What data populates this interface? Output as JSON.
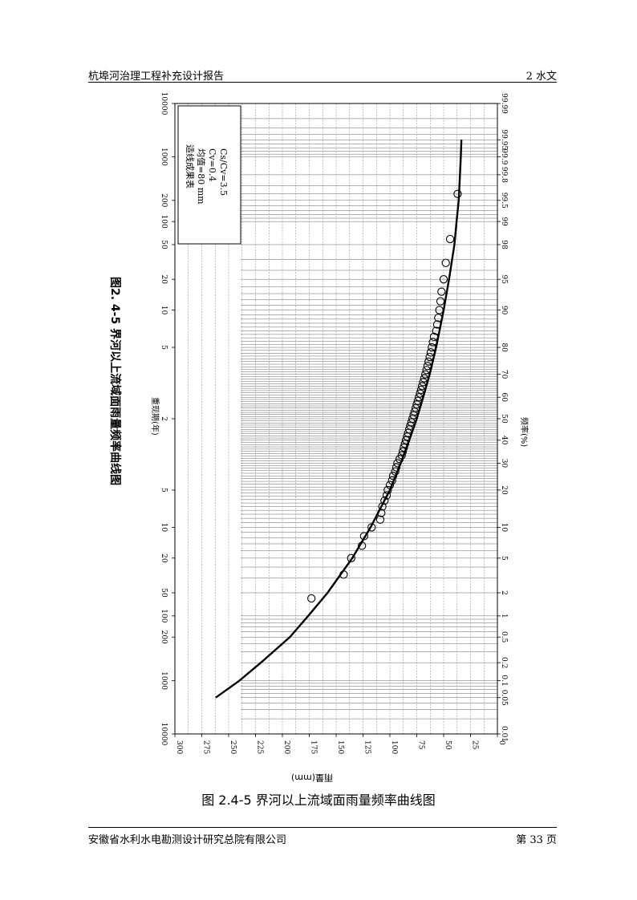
{
  "header": {
    "title": "杭埠河治理工程补充设计报告",
    "chapter": "2   水文"
  },
  "footer": {
    "org": "安徽省水利水电勘测设计研究总院有限公司",
    "page": "第 33 页"
  },
  "caption": "图 2.4-5    界河以上流域面雨量频率曲线图",
  "chart_title": "图2. 4-5    界河以上流域面雨量频率曲线图",
  "chart_data": {
    "type": "scatter",
    "title": "图2. 4-5    界河以上流域面雨量频率曲线图",
    "xlabel": "频率(%)",
    "x2label": "重现期(年)",
    "ylabel": "雨量(mm)",
    "x_scale": "normal-probability",
    "xlim": [
      0.01,
      99.99
    ],
    "ylim": [
      0,
      300
    ],
    "grid": true,
    "freq_ticks": [
      "0.01",
      "0.05",
      "0.1",
      "0.2",
      "0.5",
      "1",
      "2",
      "5",
      "10",
      "20",
      "30",
      "40",
      "50",
      "60",
      "70",
      "80",
      "90",
      "95",
      "98",
      "99",
      "99.5",
      "99.8",
      "99.9",
      "99.95",
      "99.99"
    ],
    "return_period_ticks": [
      {
        "label": "10000",
        "p": 0.01
      },
      {
        "label": "1000",
        "p": 0.1
      },
      {
        "label": "200",
        "p": 0.5
      },
      {
        "label": "100",
        "p": 1
      },
      {
        "label": "50",
        "p": 2
      },
      {
        "label": "20",
        "p": 5
      },
      {
        "label": "10",
        "p": 10
      },
      {
        "label": "5",
        "p": 20
      },
      {
        "label": "2",
        "p": 50
      },
      {
        "label": "5",
        "p": 80
      },
      {
        "label": "10",
        "p": 90
      },
      {
        "label": "20",
        "p": 95
      },
      {
        "label": "50",
        "p": 98
      },
      {
        "label": "100",
        "p": 99
      },
      {
        "label": "200",
        "p": 99.5
      },
      {
        "label": "1000",
        "p": 99.9
      },
      {
        "label": "10000",
        "p": 99.99
      }
    ],
    "y_ticks": [
      "0",
      "25",
      "50",
      "75",
      "100",
      "125",
      "150",
      "175",
      "200",
      "225",
      "250",
      "275",
      "300"
    ],
    "legend_title": "适线成果表",
    "legend_lines": [
      "均值=80 mm",
      "Cv=0.4",
      "Cs/Cv=3.5"
    ],
    "fit_curve": {
      "name": "",
      "points": [
        {
          "p": 0.05,
          "v": 262
        },
        {
          "p": 0.1,
          "v": 240
        },
        {
          "p": 0.2,
          "v": 220
        },
        {
          "p": 0.5,
          "v": 193
        },
        {
          "p": 1,
          "v": 176
        },
        {
          "p": 2,
          "v": 158
        },
        {
          "p": 5,
          "v": 135
        },
        {
          "p": 10,
          "v": 118
        },
        {
          "p": 20,
          "v": 100
        },
        {
          "p": 30,
          "v": 90
        },
        {
          "p": 40,
          "v": 82
        },
        {
          "p": 50,
          "v": 75
        },
        {
          "p": 60,
          "v": 69
        },
        {
          "p": 70,
          "v": 63
        },
        {
          "p": 80,
          "v": 57
        },
        {
          "p": 90,
          "v": 50
        },
        {
          "p": 95,
          "v": 45
        },
        {
          "p": 98,
          "v": 40
        },
        {
          "p": 99,
          "v": 38
        },
        {
          "p": 99.5,
          "v": 36
        },
        {
          "p": 99.9,
          "v": 34
        },
        {
          "p": 99.95,
          "v": 33.5
        }
      ]
    },
    "observed": [
      {
        "p": 1.7,
        "v": 173
      },
      {
        "p": 3.3,
        "v": 143
      },
      {
        "p": 5.0,
        "v": 136
      },
      {
        "p": 6.7,
        "v": 126
      },
      {
        "p": 8.3,
        "v": 124
      },
      {
        "p": 10,
        "v": 117
      },
      {
        "p": 11.7,
        "v": 109
      },
      {
        "p": 13.3,
        "v": 108
      },
      {
        "p": 15,
        "v": 107
      },
      {
        "p": 16.7,
        "v": 105
      },
      {
        "p": 18.3,
        "v": 103
      },
      {
        "p": 20,
        "v": 102
      },
      {
        "p": 21.7,
        "v": 100
      },
      {
        "p": 23.3,
        "v": 98
      },
      {
        "p": 25,
        "v": 97
      },
      {
        "p": 26.7,
        "v": 95
      },
      {
        "p": 28.3,
        "v": 94
      },
      {
        "p": 30,
        "v": 93
      },
      {
        "p": 31.7,
        "v": 91
      },
      {
        "p": 33.3,
        "v": 89
      },
      {
        "p": 35,
        "v": 88
      },
      {
        "p": 36.7,
        "v": 87
      },
      {
        "p": 38.3,
        "v": 86
      },
      {
        "p": 40,
        "v": 85
      },
      {
        "p": 41.7,
        "v": 84
      },
      {
        "p": 43.3,
        "v": 83
      },
      {
        "p": 45,
        "v": 82
      },
      {
        "p": 46.7,
        "v": 81
      },
      {
        "p": 48.3,
        "v": 80
      },
      {
        "p": 50,
        "v": 79
      },
      {
        "p": 51.7,
        "v": 78
      },
      {
        "p": 53.3,
        "v": 77
      },
      {
        "p": 55,
        "v": 76
      },
      {
        "p": 56.7,
        "v": 75
      },
      {
        "p": 58.3,
        "v": 74
      },
      {
        "p": 60,
        "v": 73
      },
      {
        "p": 61.7,
        "v": 72
      },
      {
        "p": 63.3,
        "v": 71
      },
      {
        "p": 65,
        "v": 70
      },
      {
        "p": 66.7,
        "v": 69
      },
      {
        "p": 68.3,
        "v": 68
      },
      {
        "p": 70,
        "v": 67
      },
      {
        "p": 71.7,
        "v": 66
      },
      {
        "p": 73.3,
        "v": 65
      },
      {
        "p": 75,
        "v": 64
      },
      {
        "p": 76.7,
        "v": 63
      },
      {
        "p": 78.3,
        "v": 62
      },
      {
        "p": 80,
        "v": 61
      },
      {
        "p": 81.7,
        "v": 60
      },
      {
        "p": 83.3,
        "v": 59
      },
      {
        "p": 85,
        "v": 57
      },
      {
        "p": 86.7,
        "v": 56
      },
      {
        "p": 88.3,
        "v": 55
      },
      {
        "p": 90,
        "v": 54
      },
      {
        "p": 91.7,
        "v": 53
      },
      {
        "p": 93.3,
        "v": 52
      },
      {
        "p": 95,
        "v": 50
      },
      {
        "p": 96.7,
        "v": 48
      },
      {
        "p": 98.3,
        "v": 44
      },
      {
        "p": 99.6,
        "v": 37
      }
    ]
  }
}
